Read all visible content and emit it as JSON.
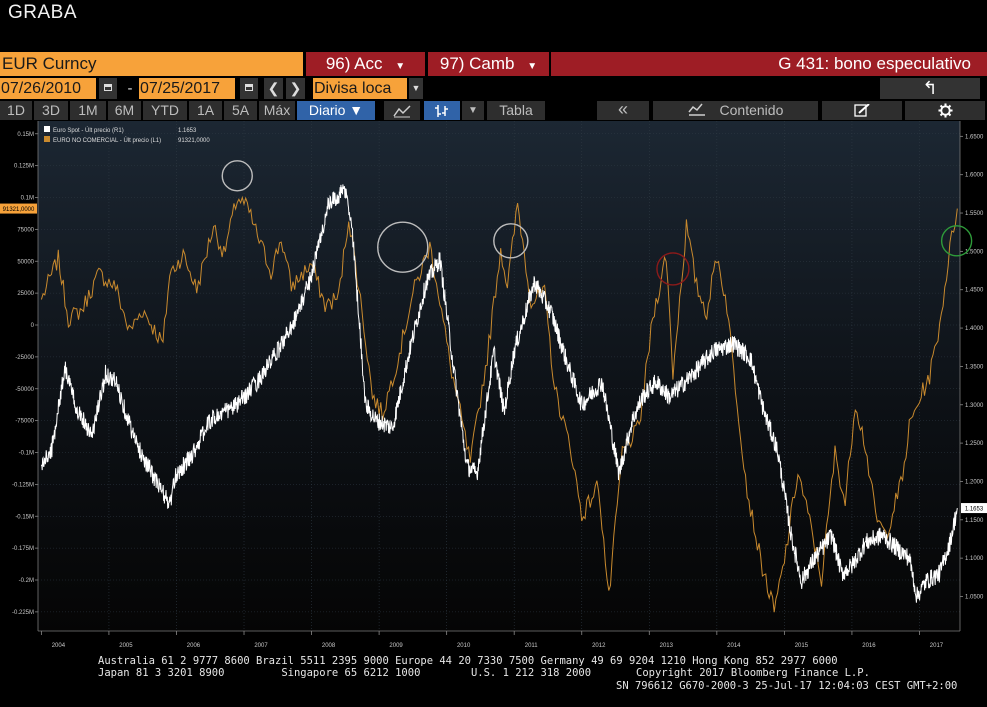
{
  "header": {
    "title": "GRABA"
  },
  "toolbar1": {
    "ticker": "EUR Curncy",
    "menu1": "96) Acc",
    "menu2": "97) Camb",
    "chart_title": "G 431: bono especulativo",
    "dropdown_glyph": "▼"
  },
  "toolbar2": {
    "start_date": "07/26/2010",
    "end_date": "07/25/2017",
    "separator": "-",
    "currency": "Divisa loca",
    "back_glyph": "↰"
  },
  "toolbar3": {
    "periods": [
      "1D",
      "3D",
      "1M",
      "6M",
      "YTD",
      "1A",
      "5A",
      "Máx"
    ],
    "frequency": "Diario ▼",
    "table_label": "Tabla",
    "content_label": "Contenido",
    "prev_glyph": "«"
  },
  "colors": {
    "orange": "#f7a23a",
    "red_bar": "#9e1d25",
    "active_blue": "#3063a8",
    "eur_series": "#ffffff",
    "noncomm_series": "#c98a2e"
  },
  "chart_data": {
    "type": "line",
    "title": "G 431: bono especulativo",
    "legend_position": "top-left",
    "legend": [
      {
        "label": "Euro Spot - Últ precio (R1)",
        "value": "1.1653"
      },
      {
        "label": "EURO NO COMERCIAL - Últ precio (L1)",
        "value": "91321,0000"
      }
    ],
    "x_ticks": [
      "2004",
      "2005",
      "2006",
      "2007",
      "2008",
      "2009",
      "2010",
      "2011",
      "2012",
      "2013",
      "2014",
      "2015",
      "2016",
      "2017"
    ],
    "x_range": [
      2003.95,
      2017.6
    ],
    "left_axis": {
      "range": [
        -240000,
        160000
      ],
      "ticks": [
        {
          "v": 150000,
          "label": "0.15M"
        },
        {
          "v": 125000,
          "label": "0.125M"
        },
        {
          "v": 100000,
          "label": "0.1M"
        },
        {
          "v": 75000,
          "label": "75000"
        },
        {
          "v": 50000,
          "label": "50000"
        },
        {
          "v": 25000,
          "label": "25000"
        },
        {
          "v": 0,
          "label": "0"
        },
        {
          "v": -25000,
          "label": "-25000"
        },
        {
          "v": -50000,
          "label": "-50000"
        },
        {
          "v": -75000,
          "label": "-75000"
        },
        {
          "v": -100000,
          "label": "-0.1M"
        },
        {
          "v": -125000,
          "label": "-0.125M"
        },
        {
          "v": -150000,
          "label": "-0.15M"
        },
        {
          "v": -175000,
          "label": "-0.175M"
        },
        {
          "v": -200000,
          "label": "-0.2M"
        },
        {
          "v": -225000,
          "label": "-0.225M"
        }
      ],
      "last_value": 91321,
      "last_label": "91321,0000"
    },
    "right_axis": {
      "range": [
        1.005,
        1.67
      ],
      "ticks": [
        "1.6500",
        "1.6000",
        "1.5500",
        "1.5000",
        "1.4500",
        "1.4000",
        "1.3500",
        "1.3000",
        "1.2500",
        "1.2000",
        "1.1500",
        "1.1000",
        "1.0500"
      ],
      "last_value": 1.1653,
      "last_label": "1.1653"
    },
    "series": [
      {
        "name": "Euro Spot - Últ precio (R1)",
        "axis": "right",
        "color": "#ffffff",
        "points": [
          [
            2004.0,
            1.22
          ],
          [
            2004.15,
            1.24
          ],
          [
            2004.35,
            1.35
          ],
          [
            2004.5,
            1.3
          ],
          [
            2004.75,
            1.26
          ],
          [
            2004.95,
            1.34
          ],
          [
            2005.1,
            1.33
          ],
          [
            2005.4,
            1.25
          ],
          [
            2005.7,
            1.2
          ],
          [
            2005.9,
            1.17
          ],
          [
            2006.0,
            1.21
          ],
          [
            2006.2,
            1.23
          ],
          [
            2006.5,
            1.28
          ],
          [
            2006.9,
            1.3
          ],
          [
            2007.2,
            1.33
          ],
          [
            2007.5,
            1.37
          ],
          [
            2007.8,
            1.42
          ],
          [
            2008.0,
            1.47
          ],
          [
            2008.25,
            1.56
          ],
          [
            2008.5,
            1.58
          ],
          [
            2008.6,
            1.53
          ],
          [
            2008.8,
            1.3
          ],
          [
            2008.95,
            1.28
          ],
          [
            2009.2,
            1.27
          ],
          [
            2009.45,
            1.37
          ],
          [
            2009.7,
            1.46
          ],
          [
            2009.9,
            1.49
          ],
          [
            2010.1,
            1.35
          ],
          [
            2010.3,
            1.22
          ],
          [
            2010.45,
            1.21
          ],
          [
            2010.7,
            1.37
          ],
          [
            2010.85,
            1.29
          ],
          [
            2011.0,
            1.37
          ],
          [
            2011.3,
            1.46
          ],
          [
            2011.55,
            1.42
          ],
          [
            2011.8,
            1.35
          ],
          [
            2012.0,
            1.3
          ],
          [
            2012.3,
            1.33
          ],
          [
            2012.55,
            1.21
          ],
          [
            2012.75,
            1.28
          ],
          [
            2012.9,
            1.31
          ],
          [
            2013.1,
            1.33
          ],
          [
            2013.3,
            1.31
          ],
          [
            2013.65,
            1.34
          ],
          [
            2013.95,
            1.37
          ],
          [
            2014.25,
            1.38
          ],
          [
            2014.5,
            1.36
          ],
          [
            2014.7,
            1.29
          ],
          [
            2014.9,
            1.24
          ],
          [
            2015.1,
            1.13
          ],
          [
            2015.25,
            1.07
          ],
          [
            2015.45,
            1.1
          ],
          [
            2015.7,
            1.13
          ],
          [
            2015.85,
            1.08
          ],
          [
            2016.0,
            1.09
          ],
          [
            2016.2,
            1.12
          ],
          [
            2016.45,
            1.13
          ],
          [
            2016.7,
            1.11
          ],
          [
            2016.85,
            1.1
          ],
          [
            2016.96,
            1.05
          ],
          [
            2017.1,
            1.07
          ],
          [
            2017.3,
            1.08
          ],
          [
            2017.45,
            1.12
          ],
          [
            2017.56,
            1.1653
          ]
        ]
      },
      {
        "name": "EURO NO COMERCIAL - Últ precio (L1)",
        "axis": "left",
        "color": "#c98a2e",
        "points": [
          [
            2004.0,
            20000
          ],
          [
            2004.25,
            52000
          ],
          [
            2004.4,
            5000
          ],
          [
            2004.6,
            12000
          ],
          [
            2004.85,
            40000
          ],
          [
            2005.1,
            30000
          ],
          [
            2005.3,
            -5000
          ],
          [
            2005.5,
            12000
          ],
          [
            2005.8,
            -15000
          ],
          [
            2005.9,
            40000
          ],
          [
            2006.1,
            55000
          ],
          [
            2006.3,
            28000
          ],
          [
            2006.55,
            78000
          ],
          [
            2006.7,
            55000
          ],
          [
            2006.9,
            100000
          ],
          [
            2007.05,
            92000
          ],
          [
            2007.2,
            70000
          ],
          [
            2007.4,
            42000
          ],
          [
            2007.55,
            68000
          ],
          [
            2007.7,
            30000
          ],
          [
            2008.0,
            48000
          ],
          [
            2008.2,
            15000
          ],
          [
            2008.4,
            22000
          ],
          [
            2008.55,
            85000
          ],
          [
            2008.75,
            10000
          ],
          [
            2008.9,
            -55000
          ],
          [
            2009.05,
            -70000
          ],
          [
            2009.3,
            -22000
          ],
          [
            2009.5,
            25000
          ],
          [
            2009.75,
            62000
          ],
          [
            2009.85,
            35000
          ],
          [
            2010.05,
            -30000
          ],
          [
            2010.35,
            -108000
          ],
          [
            2010.6,
            -25000
          ],
          [
            2010.8,
            60000
          ],
          [
            2010.9,
            30000
          ],
          [
            2011.05,
            95000
          ],
          [
            2011.25,
            18000
          ],
          [
            2011.45,
            25000
          ],
          [
            2011.6,
            -50000
          ],
          [
            2011.85,
            -100000
          ],
          [
            2012.0,
            -150000
          ],
          [
            2012.25,
            -125000
          ],
          [
            2012.4,
            -215000
          ],
          [
            2012.6,
            -100000
          ],
          [
            2012.85,
            -80000
          ],
          [
            2013.05,
            5000
          ],
          [
            2013.25,
            55000
          ],
          [
            2013.35,
            -38000
          ],
          [
            2013.55,
            78000
          ],
          [
            2013.7,
            30000
          ],
          [
            2013.85,
            10000
          ],
          [
            2014.0,
            55000
          ],
          [
            2014.15,
            15000
          ],
          [
            2014.3,
            -60000
          ],
          [
            2014.45,
            -130000
          ],
          [
            2014.65,
            -185000
          ],
          [
            2014.85,
            -225000
          ],
          [
            2015.0,
            -185000
          ],
          [
            2015.2,
            -115000
          ],
          [
            2015.4,
            -160000
          ],
          [
            2015.55,
            -200000
          ],
          [
            2015.75,
            -100000
          ],
          [
            2015.9,
            -140000
          ],
          [
            2016.05,
            -60000
          ],
          [
            2016.2,
            -95000
          ],
          [
            2016.35,
            -150000
          ],
          [
            2016.5,
            -165000
          ],
          [
            2016.75,
            -120000
          ],
          [
            2016.85,
            -80000
          ],
          [
            2017.0,
            -58000
          ],
          [
            2017.15,
            -40000
          ],
          [
            2017.3,
            0
          ],
          [
            2017.45,
            60000
          ],
          [
            2017.56,
            91321
          ]
        ]
      }
    ]
  },
  "footer": {
    "line1": "Australia 61 2 9777 8600 Brazil 5511 2395 9000 Europe 44 20 7330 7500 Germany 49 69 9204 1210 Hong Kong 852 2977 6000",
    "line2a": "Japan 81 3 3201 8900         Singapore 65 6212 1000        U.S. 1 212 318 2000",
    "line2b": "Copyright 2017 Bloomberg Finance L.P.",
    "line3": "SN 796612 G670-2000-3 25-Jul-17 12:04:03 CEST GMT+2:00"
  }
}
